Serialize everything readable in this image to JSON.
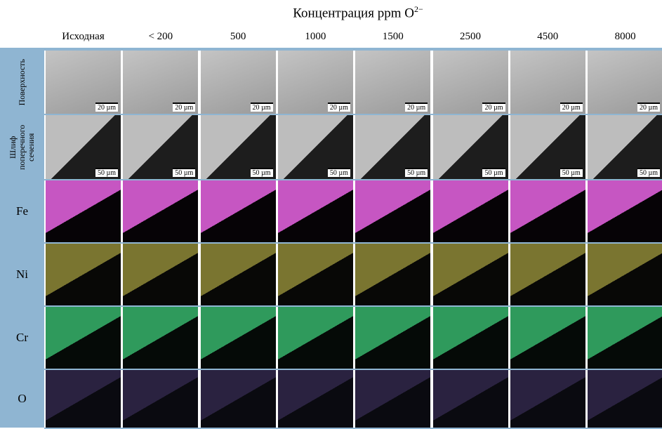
{
  "title": {
    "text": "Концентрация ppm O",
    "superscript": "2−"
  },
  "columns": [
    "Исходная",
    "< 200",
    "500",
    "1000",
    "1500",
    "2500",
    "4500",
    "8000"
  ],
  "rows": [
    {
      "label": "Поверхность",
      "scale_bar": "20 µm"
    },
    {
      "label": "Шлиф поперечного сечения",
      "scale_bar": "50 µm"
    },
    {
      "label": "Fe"
    },
    {
      "label": "Ni"
    },
    {
      "label": "Cr"
    },
    {
      "label": "O"
    }
  ]
}
